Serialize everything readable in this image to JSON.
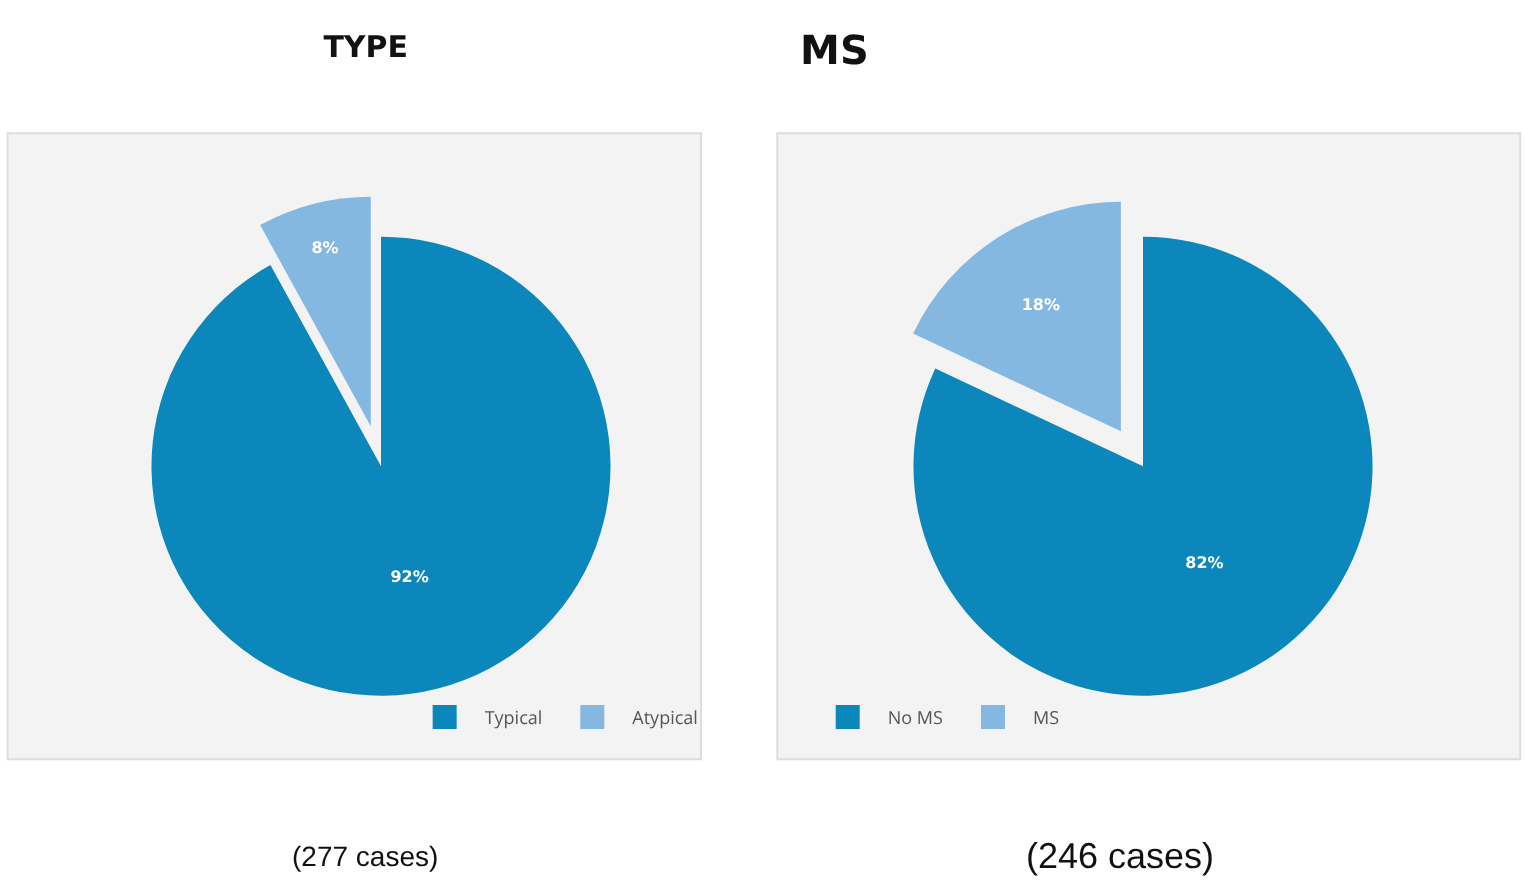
{
  "chart_data": [
    {
      "type": "pie",
      "title": "TYPE",
      "categories": [
        "Typical",
        "Atypical"
      ],
      "values": [
        92,
        8
      ],
      "colors": [
        "#0b87bb",
        "#84b8e0"
      ],
      "value_labels": [
        "92%",
        "8%"
      ],
      "legend": "bottom right",
      "annotations": [
        "(277 cases)"
      ]
    },
    {
      "type": "pie",
      "title": "MS",
      "categories": [
        "No MS",
        "MS"
      ],
      "values": [
        82,
        18
      ],
      "colors": [
        "#0b87bb",
        "#84b8e0"
      ],
      "value_labels": [
        "82%",
        "18%"
      ],
      "legend": "bottom left",
      "annotations": [
        "(246 cases)"
      ]
    }
  ]
}
